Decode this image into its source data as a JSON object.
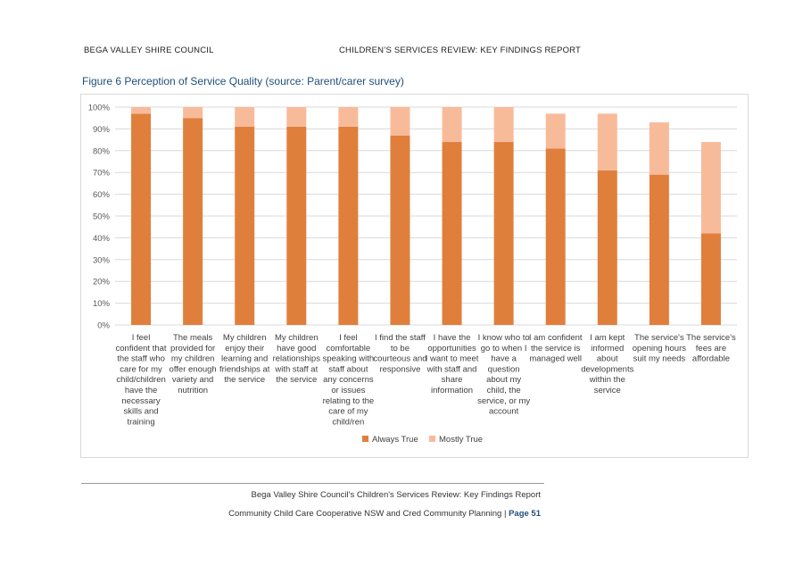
{
  "header": {
    "left": "BEGA VALLEY SHIRE COUNCIL",
    "right": "CHILDREN’S SERVICES REVIEW: KEY FINDINGS REPORT"
  },
  "figure_title": "Figure 6 Perception of Service Quality (source: Parent/carer survey)",
  "chart_data": {
    "type": "bar",
    "stacked": true,
    "categories": [
      [
        "I feel",
        "confident that",
        "the staff who",
        "care for my",
        "child/children",
        "have the",
        "necessary",
        "skills and",
        "training"
      ],
      [
        "The meals",
        "provided for",
        "my children",
        "offer enough",
        "variety and",
        "nutrition"
      ],
      [
        "My children",
        "enjoy their",
        "learning and",
        "friendships at",
        "the service"
      ],
      [
        "My children",
        "have good",
        "relationships",
        "with staff at",
        "the service"
      ],
      [
        "I feel",
        "comfortable",
        "speaking with",
        "staff about",
        "any concerns",
        "or issues",
        "relating to the",
        "care of my",
        "child/ren"
      ],
      [
        "I find the staff",
        "to be",
        "courteous and",
        "responsive"
      ],
      [
        "I have the",
        "opportunities",
        "I want to meet",
        "with staff and",
        "share",
        "information"
      ],
      [
        "I know who to",
        "go to when I",
        "have a",
        "question",
        "about my",
        "child, the",
        "service, or my",
        "account"
      ],
      [
        "I am confident",
        "the service is",
        "managed well"
      ],
      [
        "I am kept",
        "informed",
        "about",
        "developments",
        "within the",
        "service"
      ],
      [
        "The service's",
        "opening hours",
        "suit my needs"
      ],
      [
        "The service's",
        "fees are",
        "affordable"
      ]
    ],
    "series": [
      {
        "name": "Always True",
        "color": "#e07f3c",
        "values": [
          97,
          95,
          91,
          91,
          91,
          87,
          84,
          84,
          81,
          71,
          69,
          42
        ]
      },
      {
        "name": "Mostly True",
        "color": "#f8bb9a",
        "values": [
          3,
          5,
          9,
          9,
          9,
          13,
          16,
          16,
          16,
          26,
          24,
          42
        ]
      }
    ],
    "ylim": [
      0,
      100
    ],
    "yticks": [
      "0%",
      "10%",
      "20%",
      "30%",
      "40%",
      "50%",
      "60%",
      "70%",
      "80%",
      "90%",
      "100%"
    ],
    "grid": true,
    "legend_position": "bottom"
  },
  "footer": {
    "line1": "Bega Valley Shire Council's Children's Services Review: Key Findings Report",
    "line2": "Community Child Care Cooperative NSW and Cred Community Planning | ",
    "page": "Page 51"
  }
}
